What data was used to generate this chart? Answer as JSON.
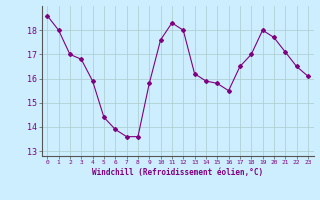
{
  "x": [
    0,
    1,
    2,
    3,
    4,
    5,
    6,
    7,
    8,
    9,
    10,
    11,
    12,
    13,
    14,
    15,
    16,
    17,
    18,
    19,
    20,
    21,
    22,
    23
  ],
  "y": [
    18.6,
    18.0,
    17.0,
    16.8,
    15.9,
    14.4,
    13.9,
    13.6,
    13.6,
    15.8,
    17.6,
    18.3,
    18.0,
    16.2,
    15.9,
    15.8,
    15.5,
    16.5,
    17.0,
    18.0,
    17.7,
    17.1,
    16.5,
    16.1
  ],
  "xlim": [
    -0.5,
    23.5
  ],
  "ylim": [
    12.8,
    19.0
  ],
  "yticks": [
    13,
    14,
    15,
    16,
    17,
    18
  ],
  "xticks": [
    0,
    1,
    2,
    3,
    4,
    5,
    6,
    7,
    8,
    9,
    10,
    11,
    12,
    13,
    14,
    15,
    16,
    17,
    18,
    19,
    20,
    21,
    22,
    23
  ],
  "xlabel": "Windchill (Refroidissement éolien,°C)",
  "line_color": "#800080",
  "marker": "D",
  "marker_size": 2,
  "bg_color": "#cceeff",
  "grid_color": "#aacccc",
  "spine_color": "#555555",
  "label_color": "#800080",
  "tick_color": "#800080",
  "xlabel_fontsize": 5.5,
  "ytick_fontsize": 6,
  "xtick_fontsize": 4.5
}
